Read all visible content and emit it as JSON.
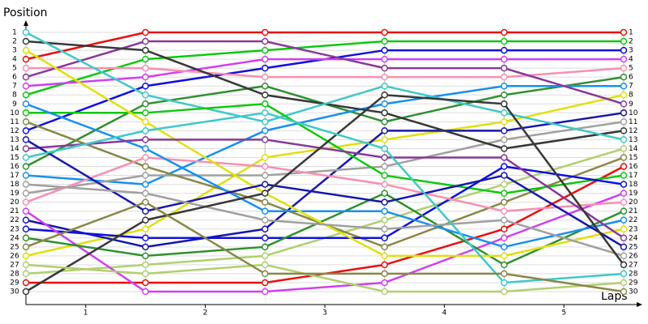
{
  "chart_data": {
    "type": "bump",
    "y_title": "Position",
    "x_title": "Laps",
    "x": [
      0,
      1,
      2,
      3,
      4,
      5
    ],
    "xlim": [
      0,
      5
    ],
    "xticks": [
      {
        "value": 0.5,
        "label": "1"
      },
      {
        "value": 1.5,
        "label": "2"
      },
      {
        "value": 2.5,
        "label": "3"
      },
      {
        "value": 3.5,
        "label": "4"
      },
      {
        "value": 4.5,
        "label": "5"
      }
    ],
    "ylim": [
      1,
      30
    ],
    "y_inverted": true,
    "yticks": [
      1,
      2,
      3,
      4,
      5,
      6,
      7,
      8,
      9,
      10,
      11,
      12,
      13,
      14,
      15,
      16,
      17,
      18,
      19,
      20,
      21,
      22,
      23,
      24,
      25,
      26,
      27,
      28,
      29,
      30
    ],
    "y2lim": [
      1,
      30
    ],
    "y2ticks": [
      1,
      2,
      3,
      4,
      5,
      6,
      7,
      8,
      9,
      10,
      11,
      12,
      13,
      14,
      15,
      16,
      17,
      18,
      19,
      20,
      21,
      22,
      23,
      24,
      25,
      26,
      27,
      28,
      29,
      30
    ],
    "grid": true,
    "series": [
      {
        "color": "#e81010",
        "values": [
          4,
          1,
          1,
          1,
          1,
          1
        ]
      },
      {
        "color": "#10c810",
        "values": [
          8,
          4,
          3,
          2,
          2,
          2
        ]
      },
      {
        "color": "#1010e0",
        "values": [
          12,
          7,
          5,
          3,
          3,
          3
        ]
      },
      {
        "color": "#d040f0",
        "values": [
          7,
          6,
          4,
          4,
          4,
          4
        ]
      },
      {
        "color": "#f890b0",
        "values": [
          5,
          5,
          6,
          6,
          6,
          5
        ]
      },
      {
        "color": "#309030",
        "values": [
          16,
          9,
          7,
          11,
          8,
          6
        ]
      },
      {
        "color": "#1890f0",
        "values": [
          17,
          18,
          12,
          9,
          7,
          7
        ]
      },
      {
        "color": "#e0e010",
        "values": [
          26,
          23,
          15,
          13,
          11,
          8
        ]
      },
      {
        "color": "#883a98",
        "values": [
          6,
          2,
          2,
          5,
          5,
          9
        ]
      },
      {
        "color": "#1818a8",
        "values": [
          22,
          25,
          23,
          12,
          12,
          10
        ]
      },
      {
        "color": "#a0a0a0",
        "values": [
          19,
          17,
          17,
          16,
          13,
          11
        ]
      },
      {
        "color": "#383838",
        "values": [
          2,
          3,
          8,
          10,
          14,
          12
        ]
      },
      {
        "color": "#40c8c8",
        "values": [
          1,
          8,
          11,
          7,
          10,
          13
        ]
      },
      {
        "color": "#b0d070",
        "values": [
          28,
          27,
          26,
          22,
          18,
          14
        ]
      },
      {
        "color": "#888848",
        "values": [
          11,
          16,
          20,
          25,
          20,
          15
        ]
      },
      {
        "color": "#e81010",
        "values": [
          29,
          29,
          29,
          27,
          23,
          16
        ]
      },
      {
        "color": "#10c810",
        "values": [
          10,
          10,
          9,
          17,
          19,
          17
        ]
      },
      {
        "color": "#1010e0",
        "values": [
          23,
          24,
          24,
          24,
          16,
          18
        ]
      },
      {
        "color": "#d040f0",
        "values": [
          21,
          30,
          30,
          29,
          24,
          19
        ]
      },
      {
        "color": "#f890b0",
        "values": [
          20,
          15,
          16,
          18,
          21,
          20
        ]
      },
      {
        "color": "#309030",
        "values": [
          24,
          26,
          25,
          19,
          27,
          21
        ]
      },
      {
        "color": "#1890f0",
        "values": [
          9,
          14,
          21,
          21,
          25,
          22
        ]
      },
      {
        "color": "#e0e010",
        "values": [
          3,
          11,
          19,
          26,
          26,
          23
        ]
      },
      {
        "color": "#883a98",
        "values": [
          14,
          13,
          13,
          15,
          15,
          24
        ]
      },
      {
        "color": "#1818a8",
        "values": [
          13,
          21,
          18,
          20,
          17,
          25
        ]
      },
      {
        "color": "#a0a0a0",
        "values": [
          18,
          19,
          22,
          23,
          22,
          26
        ]
      },
      {
        "color": "#383838",
        "values": [
          30,
          22,
          19,
          8,
          9,
          27
        ]
      },
      {
        "color": "#40c8c8",
        "values": [
          15,
          12,
          10,
          14,
          29,
          28
        ]
      },
      {
        "color": "#b0d070",
        "values": [
          27,
          28,
          27,
          30,
          30,
          29
        ]
      },
      {
        "color": "#888848",
        "values": [
          25,
          20,
          28,
          28,
          28,
          30
        ]
      }
    ]
  }
}
